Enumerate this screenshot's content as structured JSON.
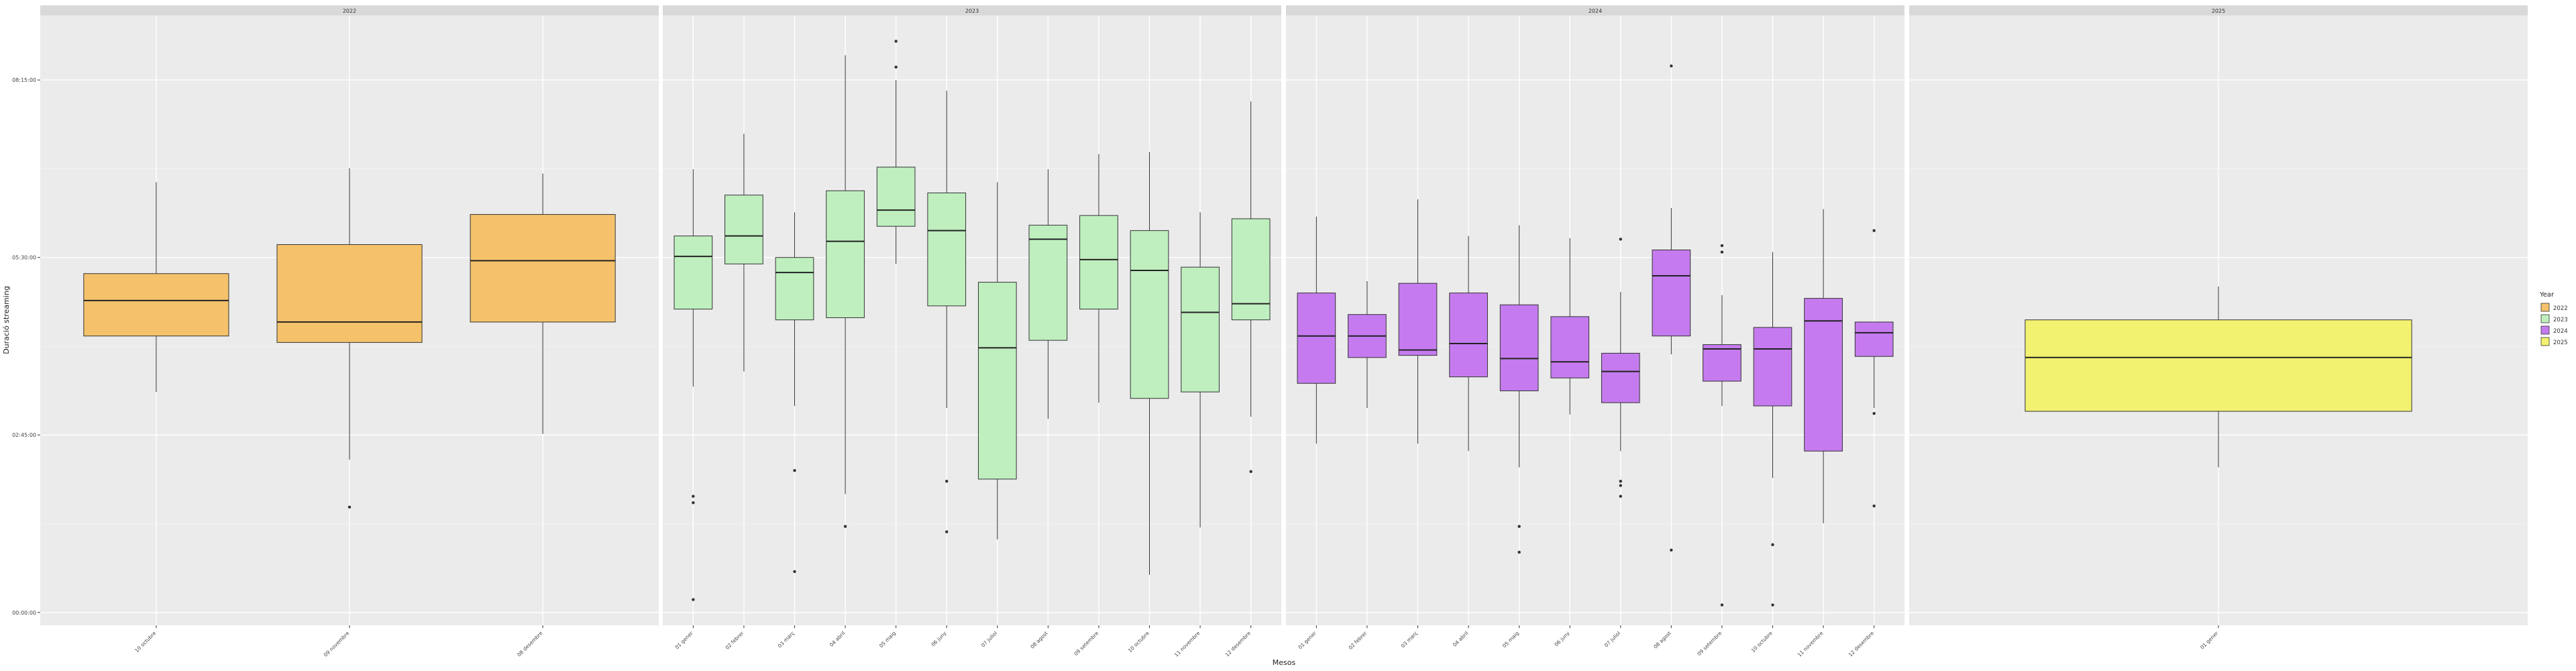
{
  "chart_data": {
    "type": "boxplot",
    "title": "",
    "xlabel": "Mesos",
    "ylabel": "Duració streaming",
    "y_axis": {
      "unit": "minutes",
      "ticks": [
        {
          "value": 0,
          "label": "00:00:00"
        },
        {
          "value": 165,
          "label": "02:45:00"
        },
        {
          "value": 330,
          "label": "05:30:00"
        },
        {
          "value": 495,
          "label": "08:15:00"
        }
      ],
      "ylim": [
        -12,
        555
      ]
    },
    "grid": true,
    "legend": {
      "title": "Year",
      "position": "right",
      "items": [
        {
          "label": "2022",
          "color": "#F5C26B"
        },
        {
          "label": "2023",
          "color": "#BFEFBF"
        },
        {
          "label": "2024",
          "color": "#C57BEF"
        },
        {
          "label": "2025",
          "color": "#F2F270"
        }
      ]
    },
    "panels": [
      {
        "label": "2022",
        "color": "#F5C26B",
        "groups": [
          {
            "x": "10 octubre",
            "whisker_low": 205,
            "q1": 257,
            "median": 290,
            "q3": 315,
            "whisker_high": 400,
            "outliers": []
          },
          {
            "x": "09 novembre",
            "whisker_low": 142,
            "q1": 251,
            "median": 270,
            "q3": 342,
            "whisker_high": 413,
            "outliers": [
              98
            ]
          },
          {
            "x": "08 desembre",
            "whisker_low": 166,
            "q1": 270,
            "median": 327,
            "q3": 370,
            "whisker_high": 408,
            "outliers": []
          }
        ]
      },
      {
        "label": "2023",
        "color": "#BFEFBF",
        "groups": [
          {
            "x": "01 gener",
            "whisker_low": 210,
            "q1": 282,
            "median": 331,
            "q3": 350,
            "whisker_high": 412,
            "outliers": [
              12,
              102,
              108
            ]
          },
          {
            "x": "02 febrer",
            "whisker_low": 224,
            "q1": 324,
            "median": 350,
            "q3": 388,
            "whisker_high": 445,
            "outliers": []
          },
          {
            "x": "03 març",
            "whisker_low": 192,
            "q1": 272,
            "median": 316,
            "q3": 330,
            "whisker_high": 372,
            "outliers": [
              38,
              132
            ]
          },
          {
            "x": "04 abril",
            "whisker_low": 110,
            "q1": 274,
            "median": 345,
            "q3": 392,
            "whisker_high": 518,
            "outliers": [
              80
            ]
          },
          {
            "x": "05 maig",
            "whisker_low": 324,
            "q1": 359,
            "median": 374,
            "q3": 414,
            "whisker_high": 495,
            "outliers": [
              507,
              531
            ]
          },
          {
            "x": "06 juny",
            "whisker_low": 190,
            "q1": 285,
            "median": 355,
            "q3": 390,
            "whisker_high": 485,
            "outliers": [
              75,
              122
            ]
          },
          {
            "x": "07 juliol",
            "whisker_low": 68,
            "q1": 124,
            "median": 246,
            "q3": 307,
            "whisker_high": 400,
            "outliers": []
          },
          {
            "x": "08 agost",
            "whisker_low": 180,
            "q1": 253,
            "median": 347,
            "q3": 360,
            "whisker_high": 412,
            "outliers": []
          },
          {
            "x": "09 setembre",
            "whisker_low": 195,
            "q1": 282,
            "median": 328,
            "q3": 369,
            "whisker_high": 426,
            "outliers": []
          },
          {
            "x": "10 octubre",
            "whisker_low": 35,
            "q1": 199,
            "median": 318,
            "q3": 355,
            "whisker_high": 428,
            "outliers": []
          },
          {
            "x": "11 novembre",
            "whisker_low": 79,
            "q1": 205,
            "median": 279,
            "q3": 321,
            "whisker_high": 372,
            "outliers": []
          },
          {
            "x": "12 desembre",
            "whisker_low": 182,
            "q1": 272,
            "median": 287,
            "q3": 366,
            "whisker_high": 475,
            "outliers": [
              131
            ]
          }
        ]
      },
      {
        "label": "2024",
        "color": "#C57BEF",
        "groups": [
          {
            "x": "01 gener",
            "whisker_low": 157,
            "q1": 213,
            "median": 257,
            "q3": 297,
            "whisker_high": 368,
            "outliers": []
          },
          {
            "x": "02 febrer",
            "whisker_low": 190,
            "q1": 237,
            "median": 257,
            "q3": 277,
            "whisker_high": 308,
            "outliers": []
          },
          {
            "x": "03 març",
            "whisker_low": 157,
            "q1": 239,
            "median": 244,
            "q3": 306,
            "whisker_high": 384,
            "outliers": []
          },
          {
            "x": "04 abril",
            "whisker_low": 150,
            "q1": 219,
            "median": 250,
            "q3": 297,
            "whisker_high": 350,
            "outliers": []
          },
          {
            "x": "05 maig",
            "whisker_low": 135,
            "q1": 206,
            "median": 236,
            "q3": 286,
            "whisker_high": 360,
            "outliers": [
              56,
              80
            ]
          },
          {
            "x": "06 juny",
            "whisker_low": 184,
            "q1": 218,
            "median": 233,
            "q3": 275,
            "whisker_high": 348,
            "outliers": []
          },
          {
            "x": "07 juliol",
            "whisker_low": 150,
            "q1": 195,
            "median": 224,
            "q3": 241,
            "whisker_high": 298,
            "outliers": [
              108,
              118,
              122,
              347
            ]
          },
          {
            "x": "08 agost",
            "whisker_low": 240,
            "q1": 257,
            "median": 313,
            "q3": 337,
            "whisker_high": 376,
            "outliers": [
              58,
              508
            ]
          },
          {
            "x": "09 setembre",
            "whisker_low": 192,
            "q1": 215,
            "median": 245,
            "q3": 249,
            "whisker_high": 295,
            "outliers": [
              7,
              335,
              341
            ]
          },
          {
            "x": "10 octubre",
            "whisker_low": 125,
            "q1": 192,
            "median": 245,
            "q3": 265,
            "whisker_high": 335,
            "outliers": [
              7,
              63
            ]
          },
          {
            "x": "11 novembre",
            "whisker_low": 83,
            "q1": 150,
            "median": 271,
            "q3": 292,
            "whisker_high": 375,
            "outliers": []
          },
          {
            "x": "12 desembre",
            "whisker_low": 190,
            "q1": 238,
            "median": 260,
            "q3": 270,
            "whisker_high": 270,
            "outliers": [
              99,
              185,
              355
            ]
          }
        ]
      },
      {
        "label": "2025",
        "color": "#F2F270",
        "groups": [
          {
            "x": "01 gener",
            "whisker_low": 135,
            "q1": 187,
            "median": 237,
            "q3": 272,
            "whisker_high": 303,
            "outliers": []
          }
        ]
      }
    ]
  }
}
